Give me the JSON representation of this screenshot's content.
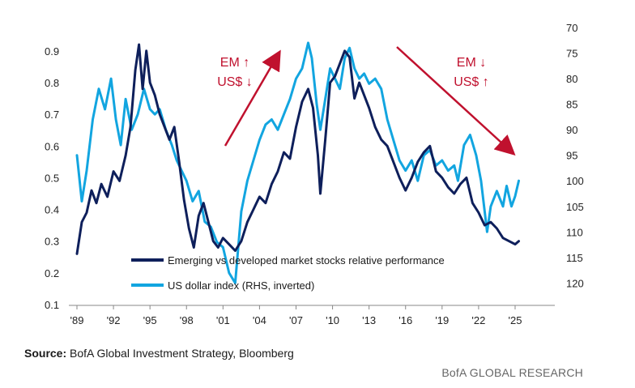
{
  "chart_data": {
    "type": "line",
    "x_ticks": [
      "'89",
      "'92",
      "'95",
      "'98",
      "'01",
      "'04",
      "'07",
      "'10",
      "'13",
      "'16",
      "'19",
      "'22",
      "'25"
    ],
    "x_range": [
      1989.0,
      2025.6
    ],
    "left_axis": {
      "ticks": [
        "0.9",
        "0.8",
        "0.7",
        "0.6",
        "0.5",
        "0.4",
        "0.3",
        "0.2",
        "0.1"
      ],
      "ylim": [
        0.1,
        0.92
      ]
    },
    "right_axis": {
      "ticks": [
        "70",
        "75",
        "80",
        "85",
        "90",
        "95",
        "100",
        "105",
        "110",
        "115",
        "120"
      ],
      "ylim": [
        70,
        122
      ],
      "inverted": true
    },
    "series": [
      {
        "name": "Emerging vs developed market stocks relative performance",
        "axis": "left",
        "color": "#0e1f5b",
        "x": [
          1989.0,
          1989.4,
          1989.8,
          1990.2,
          1990.6,
          1991.0,
          1991.5,
          1992.0,
          1992.5,
          1993.0,
          1993.4,
          1993.8,
          1994.1,
          1994.4,
          1994.7,
          1995.0,
          1995.4,
          1995.8,
          1996.2,
          1996.6,
          1997.0,
          1997.4,
          1997.8,
          1998.2,
          1998.6,
          1999.0,
          1999.4,
          1999.8,
          2000.2,
          2000.6,
          2001.0,
          2001.5,
          2002.0,
          2002.5,
          2003.0,
          2003.5,
          2004.0,
          2004.5,
          2005.0,
          2005.5,
          2006.0,
          2006.5,
          2007.0,
          2007.5,
          2008.0,
          2008.4,
          2008.8,
          2009.0,
          2009.4,
          2009.8,
          2010.2,
          2010.6,
          2011.0,
          2011.4,
          2011.8,
          2012.2,
          2012.6,
          2013.0,
          2013.5,
          2014.0,
          2014.5,
          2015.0,
          2015.5,
          2016.0,
          2016.5,
          2017.0,
          2017.5,
          2018.0,
          2018.5,
          2019.0,
          2019.5,
          2020.0,
          2020.5,
          2021.0,
          2021.5,
          2022.0,
          2022.5,
          2023.0,
          2023.5,
          2024.0,
          2024.5,
          2025.0,
          2025.3
        ],
        "values": [
          0.26,
          0.36,
          0.39,
          0.46,
          0.42,
          0.48,
          0.44,
          0.52,
          0.49,
          0.57,
          0.66,
          0.84,
          0.92,
          0.78,
          0.9,
          0.8,
          0.76,
          0.7,
          0.66,
          0.62,
          0.66,
          0.55,
          0.43,
          0.34,
          0.28,
          0.38,
          0.42,
          0.36,
          0.3,
          0.28,
          0.31,
          0.29,
          0.27,
          0.3,
          0.36,
          0.4,
          0.44,
          0.42,
          0.48,
          0.52,
          0.58,
          0.56,
          0.66,
          0.74,
          0.78,
          0.72,
          0.57,
          0.45,
          0.62,
          0.8,
          0.82,
          0.86,
          0.9,
          0.88,
          0.75,
          0.8,
          0.76,
          0.72,
          0.66,
          0.62,
          0.6,
          0.55,
          0.5,
          0.46,
          0.5,
          0.55,
          0.58,
          0.6,
          0.52,
          0.5,
          0.47,
          0.45,
          0.48,
          0.5,
          0.42,
          0.39,
          0.35,
          0.36,
          0.34,
          0.31,
          0.3,
          0.29,
          0.3
        ]
      },
      {
        "name": "US dollar index (RHS, inverted)",
        "axis": "right",
        "color": "#12a5e0",
        "x": [
          1989.0,
          1989.4,
          1989.8,
          1990.3,
          1990.8,
          1991.3,
          1991.8,
          1992.2,
          1992.6,
          1993.0,
          1993.5,
          1994.0,
          1994.5,
          1995.0,
          1995.4,
          1995.8,
          1996.3,
          1996.8,
          1997.2,
          1997.6,
          1998.0,
          1998.5,
          1999.0,
          1999.5,
          2000.0,
          2000.5,
          2001.0,
          2001.5,
          2002.0,
          2002.5,
          2003.0,
          2003.5,
          2004.0,
          2004.5,
          2005.0,
          2005.5,
          2006.0,
          2006.5,
          2007.0,
          2007.5,
          2008.0,
          2008.3,
          2008.7,
          2009.0,
          2009.4,
          2009.8,
          2010.2,
          2010.6,
          2011.0,
          2011.4,
          2011.8,
          2012.2,
          2012.6,
          2013.0,
          2013.5,
          2014.0,
          2014.5,
          2015.0,
          2015.5,
          2016.0,
          2016.5,
          2017.0,
          2017.5,
          2018.0,
          2018.5,
          2019.0,
          2019.5,
          2020.0,
          2020.3,
          2020.8,
          2021.3,
          2021.8,
          2022.2,
          2022.7,
          2023.0,
          2023.5,
          2024.0,
          2024.3,
          2024.7,
          2025.0,
          2025.3
        ],
        "values": [
          95,
          104,
          98,
          88,
          82,
          86,
          80,
          88,
          93,
          84,
          90,
          87,
          82,
          86,
          87,
          86,
          90,
          93,
          96,
          98,
          100,
          104,
          102,
          108,
          109,
          112,
          113,
          118,
          120,
          106,
          100,
          96,
          92,
          89,
          88,
          90,
          87,
          84,
          80,
          78,
          73,
          76,
          85,
          90,
          84,
          78,
          80,
          82,
          76,
          74,
          78,
          80,
          79,
          81,
          80,
          82,
          88,
          92,
          96,
          98,
          96,
          100,
          95,
          94,
          97,
          96,
          98,
          97,
          100,
          93,
          91,
          95,
          100,
          110,
          105,
          102,
          105,
          101,
          105,
          103,
          100
        ]
      }
    ],
    "annotations": [
      {
        "text": [
          "EM ↑",
          "US$ ↓"
        ],
        "arrow": "up"
      },
      {
        "text": [
          "EM ↓",
          "US$ ↑"
        ],
        "arrow": "down"
      }
    ],
    "legend_position": "bottom-center",
    "grid": false
  },
  "source": {
    "label": "Source:",
    "text": " BofA Global Investment Strategy, Bloomberg"
  },
  "brand": "BofA GLOBAL RESEARCH",
  "colors": {
    "annotation": "#c0112e",
    "axis": "#666666"
  }
}
